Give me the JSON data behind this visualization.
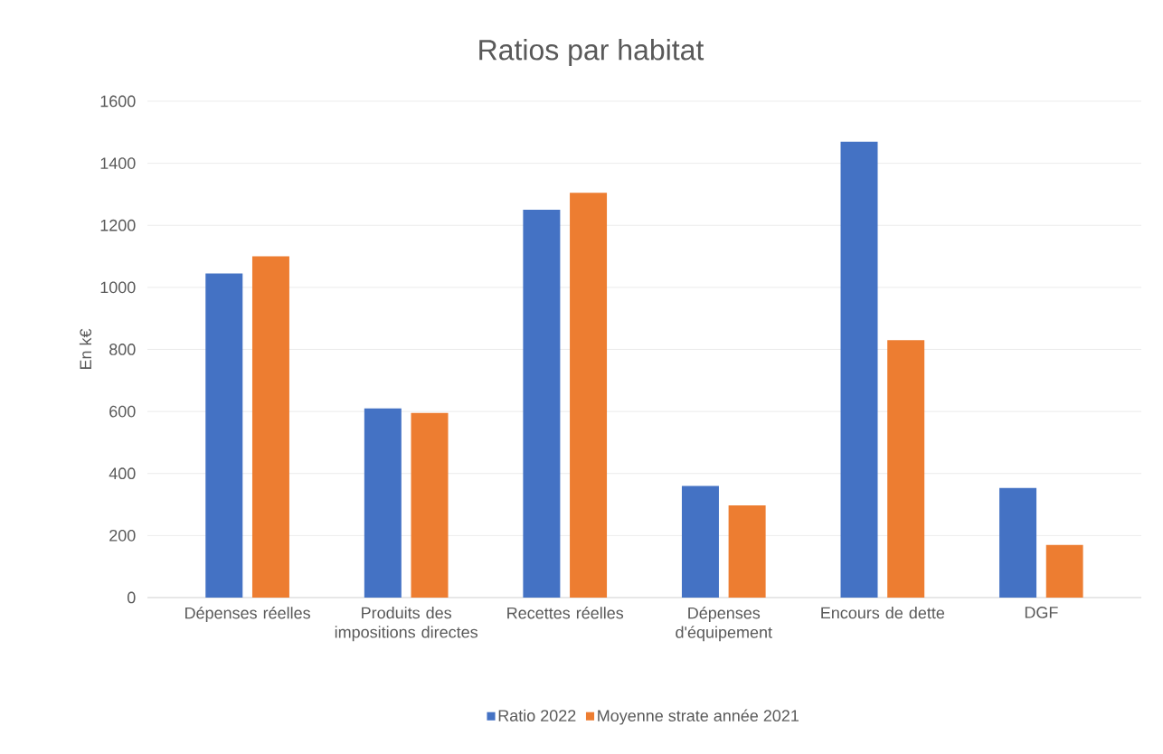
{
  "chart_data": {
    "type": "bar",
    "title": "Ratios par habitat",
    "ylabel": "En k€",
    "categories": [
      "Dépenses réelles",
      "Produits des impositions directes",
      "Recettes réelles",
      "Dépenses d'équipement",
      "Encours de dette",
      "DGF"
    ],
    "series": [
      {
        "name": "Ratio 2022",
        "color": "#4472c4",
        "values": [
          1045,
          610,
          1250,
          360,
          1470,
          353
        ]
      },
      {
        "name": "Moyenne strate année 2021",
        "color": "#ed7d31",
        "values": [
          1100,
          595,
          1305,
          297,
          830,
          170
        ]
      }
    ],
    "ylim": [
      0,
      1600
    ],
    "yticks": [
      0,
      200,
      400,
      600,
      800,
      1000,
      1200,
      1400,
      1600
    ],
    "grid": "y",
    "legend": "bottom"
  }
}
